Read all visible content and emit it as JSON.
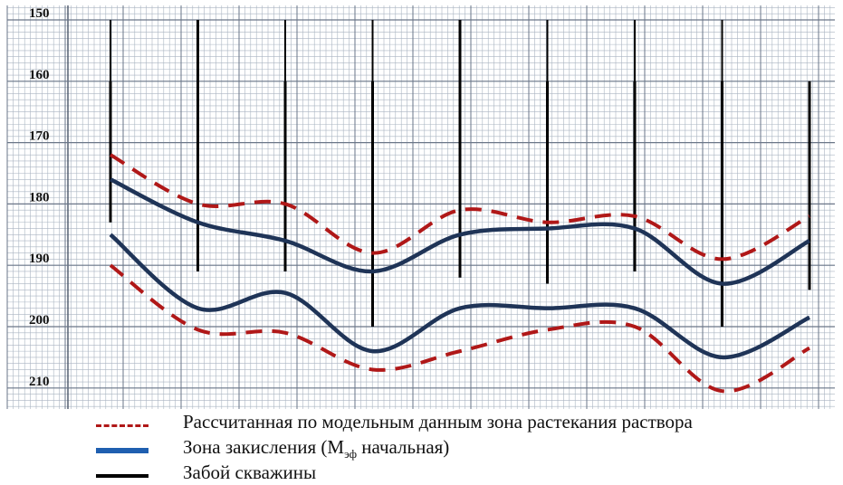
{
  "chart_data": {
    "type": "line",
    "yticks": [
      "150",
      "160",
      "170",
      "180",
      "190",
      "200",
      "210"
    ],
    "ylim": [
      150,
      213
    ],
    "xlim": [
      0,
      8.8
    ],
    "grid": true,
    "series": [
      {
        "name": "Рассчитанная по модельным данным зона растекания раствора",
        "style": "dashed",
        "color": "#b01818",
        "x": [
          0,
          1,
          2,
          3,
          4,
          5,
          6,
          7,
          8
        ],
        "y": [
          172,
          180,
          180,
          188,
          181,
          183,
          182,
          189,
          182
        ]
      },
      {
        "name": "Рассчитанная по модельным данным зона растекания раствора",
        "style": "dashed",
        "color": "#b01818",
        "x": [
          0,
          1,
          2,
          3,
          4,
          5,
          6,
          7,
          8
        ],
        "y": [
          190,
          200.5,
          201,
          207,
          204,
          200.5,
          200,
          210.5,
          203.5
        ]
      },
      {
        "name": "Зона закисления (Мэф начальная)",
        "style": "solid",
        "color": "#1f3457",
        "x": [
          0,
          1,
          2,
          3,
          4,
          5,
          6,
          7,
          8
        ],
        "y": [
          176,
          183,
          186,
          191,
          185,
          184,
          184,
          193,
          186
        ]
      },
      {
        "name": "Зона закисления (Мэф начальная)",
        "style": "solid",
        "color": "#1f3457",
        "x": [
          0,
          1,
          2,
          3,
          4,
          5,
          6,
          7,
          8
        ],
        "y": [
          185,
          197,
          194.5,
          204,
          197,
          197,
          197,
          205,
          198.5
        ]
      }
    ],
    "wells": [
      {
        "x": 0,
        "top": 160,
        "bottom": 183,
        "thin_top": 150
      },
      {
        "x": 1,
        "top": 150,
        "bottom": 191
      },
      {
        "x": 2,
        "top": 160,
        "bottom": 191,
        "thin_top": 150
      },
      {
        "x": 3,
        "top": 160,
        "bottom": 200,
        "thin_top": 150
      },
      {
        "x": 4,
        "top": 150,
        "bottom": 192
      },
      {
        "x": 5,
        "top": 160,
        "bottom": 193,
        "thin_top": 150
      },
      {
        "x": 6,
        "top": 160,
        "bottom": 191,
        "thin_top": 150
      },
      {
        "x": 7,
        "top": 160,
        "bottom": 200,
        "thin_top": 150
      },
      {
        "x": 8,
        "top": 160,
        "bottom": 194
      }
    ],
    "colors": {
      "grid_minor": "#aab4c2",
      "grid_major": "#6a7688",
      "dashed": "#b01818",
      "acid": "#1f3457",
      "well": "#000000"
    }
  },
  "legend": {
    "dashed_label": "Рассчитанная по модельным данным зона растекания раствора",
    "acid_label_main": "Зона закисления (М",
    "acid_label_sub": "эф",
    "acid_label_tail": " начальная)",
    "well_label": "Забой скважины"
  }
}
